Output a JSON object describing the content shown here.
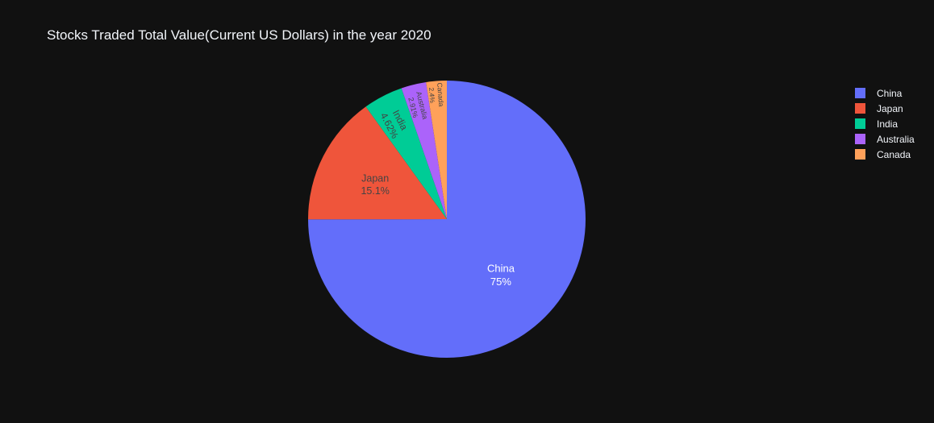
{
  "chart_data": {
    "type": "pie",
    "title": "Stocks Traded Total Value(Current US Dollars) in the year 2020",
    "legend_position": "top-right",
    "direction": "clockwise",
    "start": "top",
    "slices": [
      {
        "name": "China",
        "percent": 75,
        "label": "75%",
        "color": "#636efa",
        "label_color": "#ffffff"
      },
      {
        "name": "Japan",
        "percent": 15.1,
        "label": "15.1%",
        "color": "#ef553b",
        "label_color": "#444444"
      },
      {
        "name": "India",
        "percent": 4.62,
        "label": "4.62%",
        "color": "#00cc96",
        "label_color": "#444444"
      },
      {
        "name": "Australia",
        "percent": 2.91,
        "label": "2.91%",
        "color": "#ab63fa",
        "label_color": "#444444"
      },
      {
        "name": "Canada",
        "percent": 2.4,
        "label": "2.4%",
        "color": "#ffa15a",
        "label_color": "#444444"
      }
    ]
  },
  "colors": {
    "background": "#111111",
    "text": "#f2f5fa"
  }
}
